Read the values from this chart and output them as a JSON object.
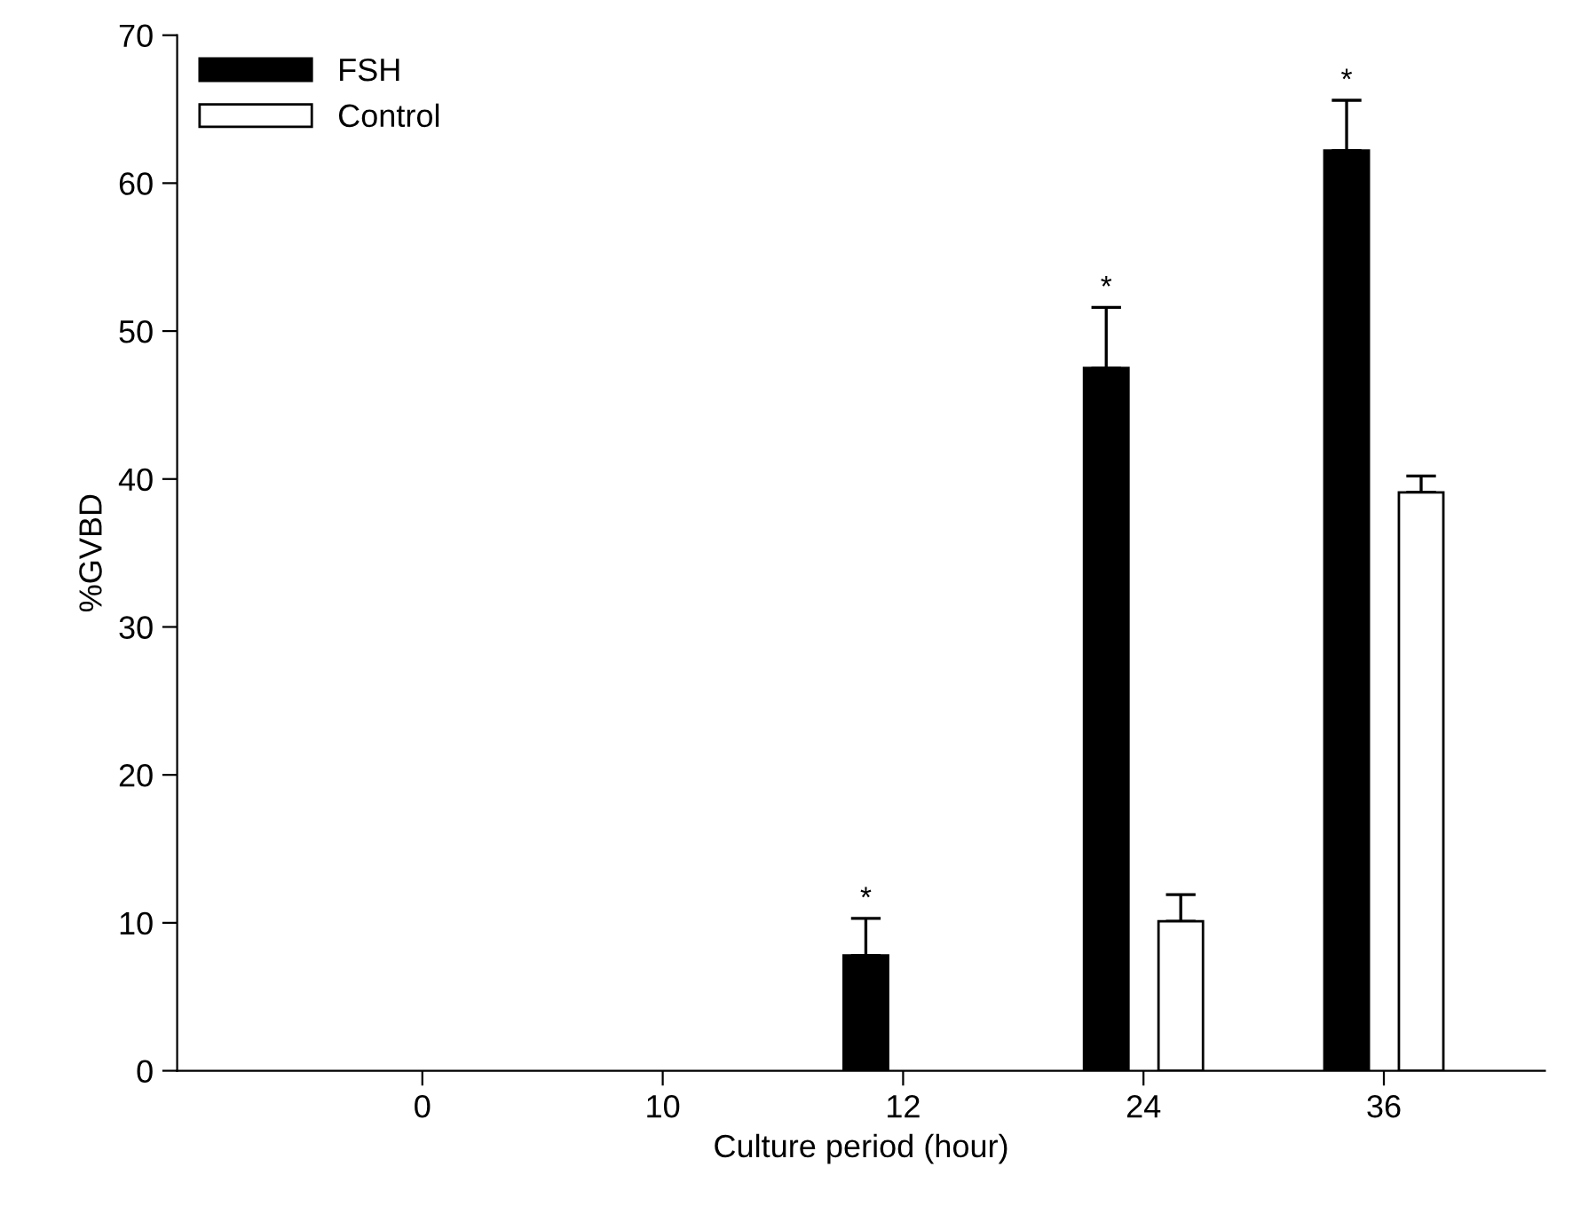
{
  "chart_data": {
    "type": "bar",
    "xlabel": "Culture period (hour)",
    "ylabel": "%GVBD",
    "categories": [
      "0",
      "10",
      "12",
      "24",
      "36"
    ],
    "series": [
      {
        "name": "FSH",
        "color": "#000000",
        "values": [
          null,
          null,
          7.8,
          47.5,
          62.2
        ],
        "errors": [
          null,
          null,
          2.5,
          4.1,
          3.4
        ]
      },
      {
        "name": "Control",
        "color": "#ffffff",
        "values": [
          null,
          null,
          null,
          10.1,
          39.1
        ],
        "errors": [
          null,
          null,
          null,
          1.8,
          1.1
        ]
      }
    ],
    "ylim": [
      0,
      70
    ],
    "yticks": [
      0,
      10,
      20,
      30,
      40,
      50,
      60,
      70
    ],
    "grid": false,
    "legend": "top left",
    "annotations": [
      "*",
      "*",
      "*"
    ]
  }
}
